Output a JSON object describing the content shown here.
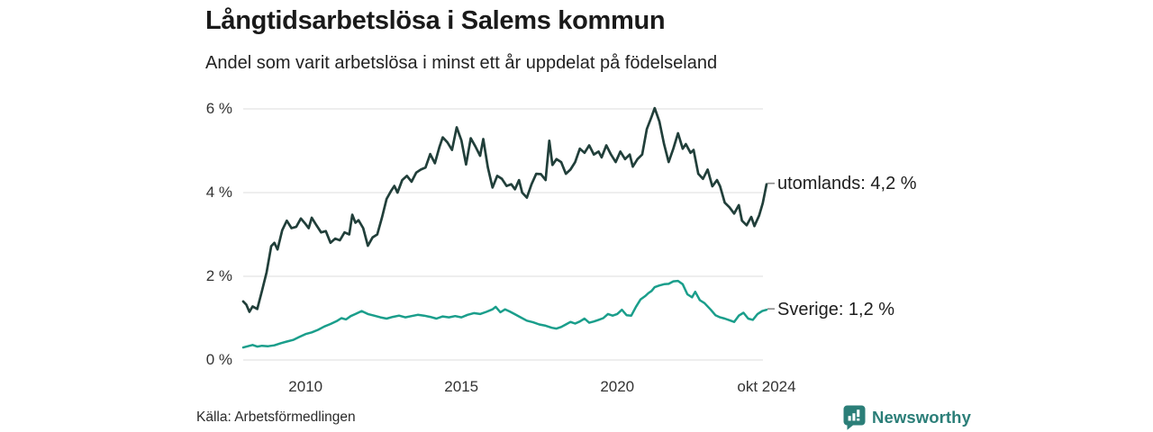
{
  "header": {
    "title": "Långtidsarbetslösa i Salems kommun",
    "subtitle": "Andel som varit arbetslösa i minst ett år uppdelat på födelseland"
  },
  "chart_data": {
    "type": "line",
    "title": "Långtidsarbetslösa i Salems kommun",
    "subtitle": "Andel som varit arbetslösa i minst ett år uppdelat på födelseland",
    "unit": "%",
    "grid": true,
    "x_axis": {
      "range": [
        2008.0,
        2024.79
      ],
      "ticks": [
        {
          "label": "2010",
          "x": 2010
        },
        {
          "label": "2015",
          "x": 2015
        },
        {
          "label": "2020",
          "x": 2020
        },
        {
          "label": "okt 2024",
          "x": 2024.79
        }
      ]
    },
    "y_axis": {
      "range": [
        0,
        6
      ],
      "ticks": [
        {
          "label": "6 %",
          "value": 6
        },
        {
          "label": "4 %",
          "value": 4
        },
        {
          "label": "2 %",
          "value": 2
        },
        {
          "label": "0 %",
          "value": 0
        }
      ]
    },
    "series": [
      {
        "name": "utomlands",
        "label": "utomlands: 4,2 %",
        "end_value": 4.2,
        "color": "#213f3a",
        "stroke_width": 2.7,
        "points": [
          [
            2008.0,
            1.4
          ],
          [
            2008.1,
            1.32
          ],
          [
            2008.2,
            1.15
          ],
          [
            2008.3,
            1.28
          ],
          [
            2008.45,
            1.22
          ],
          [
            2008.6,
            1.65
          ],
          [
            2008.75,
            2.1
          ],
          [
            2008.9,
            2.72
          ],
          [
            2009.0,
            2.8
          ],
          [
            2009.1,
            2.64
          ],
          [
            2009.25,
            3.1
          ],
          [
            2009.4,
            3.33
          ],
          [
            2009.55,
            3.15
          ],
          [
            2009.7,
            3.18
          ],
          [
            2009.85,
            3.38
          ],
          [
            2010.0,
            3.25
          ],
          [
            2010.1,
            3.15
          ],
          [
            2010.2,
            3.4
          ],
          [
            2010.35,
            3.22
          ],
          [
            2010.5,
            3.05
          ],
          [
            2010.65,
            3.08
          ],
          [
            2010.8,
            2.8
          ],
          [
            2010.95,
            2.9
          ],
          [
            2011.1,
            2.86
          ],
          [
            2011.25,
            3.05
          ],
          [
            2011.4,
            3.0
          ],
          [
            2011.5,
            3.47
          ],
          [
            2011.6,
            3.28
          ],
          [
            2011.7,
            3.34
          ],
          [
            2011.85,
            3.15
          ],
          [
            2012.0,
            2.73
          ],
          [
            2012.15,
            2.93
          ],
          [
            2012.3,
            3.0
          ],
          [
            2012.45,
            3.4
          ],
          [
            2012.6,
            3.85
          ],
          [
            2012.75,
            4.05
          ],
          [
            2012.85,
            4.16
          ],
          [
            2012.95,
            4.0
          ],
          [
            2013.1,
            4.3
          ],
          [
            2013.25,
            4.4
          ],
          [
            2013.4,
            4.26
          ],
          [
            2013.55,
            4.48
          ],
          [
            2013.7,
            4.55
          ],
          [
            2013.85,
            4.6
          ],
          [
            2014.0,
            4.92
          ],
          [
            2014.15,
            4.7
          ],
          [
            2014.3,
            5.1
          ],
          [
            2014.4,
            5.32
          ],
          [
            2014.55,
            5.2
          ],
          [
            2014.7,
            5.02
          ],
          [
            2014.85,
            5.56
          ],
          [
            2015.0,
            5.25
          ],
          [
            2015.15,
            4.67
          ],
          [
            2015.3,
            5.3
          ],
          [
            2015.45,
            5.1
          ],
          [
            2015.6,
            4.88
          ],
          [
            2015.7,
            5.28
          ],
          [
            2015.85,
            4.6
          ],
          [
            2016.0,
            4.12
          ],
          [
            2016.15,
            4.4
          ],
          [
            2016.3,
            4.33
          ],
          [
            2016.45,
            4.16
          ],
          [
            2016.6,
            4.2
          ],
          [
            2016.72,
            4.08
          ],
          [
            2016.85,
            4.3
          ],
          [
            2016.95,
            4.0
          ],
          [
            2017.1,
            3.88
          ],
          [
            2017.25,
            4.2
          ],
          [
            2017.4,
            4.45
          ],
          [
            2017.55,
            4.44
          ],
          [
            2017.7,
            4.3
          ],
          [
            2017.82,
            5.24
          ],
          [
            2017.92,
            4.66
          ],
          [
            2018.05,
            4.8
          ],
          [
            2018.2,
            4.73
          ],
          [
            2018.35,
            4.45
          ],
          [
            2018.5,
            4.55
          ],
          [
            2018.65,
            4.73
          ],
          [
            2018.8,
            5.05
          ],
          [
            2018.95,
            4.95
          ],
          [
            2019.1,
            5.13
          ],
          [
            2019.25,
            4.91
          ],
          [
            2019.4,
            4.98
          ],
          [
            2019.5,
            4.84
          ],
          [
            2019.65,
            5.13
          ],
          [
            2019.8,
            4.91
          ],
          [
            2019.95,
            4.73
          ],
          [
            2020.1,
            4.98
          ],
          [
            2020.25,
            4.8
          ],
          [
            2020.4,
            4.91
          ],
          [
            2020.5,
            4.62
          ],
          [
            2020.65,
            4.8
          ],
          [
            2020.8,
            4.91
          ],
          [
            2020.95,
            5.52
          ],
          [
            2021.1,
            5.81
          ],
          [
            2021.2,
            6.02
          ],
          [
            2021.35,
            5.7
          ],
          [
            2021.5,
            5.16
          ],
          [
            2021.65,
            4.73
          ],
          [
            2021.8,
            5.05
          ],
          [
            2021.95,
            5.42
          ],
          [
            2022.1,
            5.05
          ],
          [
            2022.2,
            5.16
          ],
          [
            2022.35,
            4.95
          ],
          [
            2022.45,
            5.02
          ],
          [
            2022.6,
            4.45
          ],
          [
            2022.75,
            4.33
          ],
          [
            2022.9,
            4.55
          ],
          [
            2023.05,
            4.15
          ],
          [
            2023.2,
            4.3
          ],
          [
            2023.3,
            4.15
          ],
          [
            2023.45,
            3.76
          ],
          [
            2023.6,
            3.65
          ],
          [
            2023.75,
            3.5
          ],
          [
            2023.9,
            3.7
          ],
          [
            2024.0,
            3.33
          ],
          [
            2024.15,
            3.22
          ],
          [
            2024.3,
            3.42
          ],
          [
            2024.4,
            3.2
          ],
          [
            2024.55,
            3.45
          ],
          [
            2024.67,
            3.75
          ],
          [
            2024.79,
            4.2
          ]
        ]
      },
      {
        "name": "Sverige",
        "label": "Sverige: 1,2 %",
        "end_value": 1.2,
        "color": "#1a9e8b",
        "stroke_width": 2.5,
        "points": [
          [
            2008.0,
            0.3
          ],
          [
            2008.15,
            0.33
          ],
          [
            2008.3,
            0.36
          ],
          [
            2008.45,
            0.32
          ],
          [
            2008.6,
            0.34
          ],
          [
            2008.8,
            0.33
          ],
          [
            2009.0,
            0.35
          ],
          [
            2009.2,
            0.4
          ],
          [
            2009.4,
            0.44
          ],
          [
            2009.6,
            0.48
          ],
          [
            2009.8,
            0.55
          ],
          [
            2010.0,
            0.62
          ],
          [
            2010.2,
            0.66
          ],
          [
            2010.4,
            0.72
          ],
          [
            2010.6,
            0.8
          ],
          [
            2010.8,
            0.86
          ],
          [
            2011.0,
            0.93
          ],
          [
            2011.15,
            1.0
          ],
          [
            2011.3,
            0.97
          ],
          [
            2011.45,
            1.05
          ],
          [
            2011.6,
            1.1
          ],
          [
            2011.8,
            1.17
          ],
          [
            2012.0,
            1.1
          ],
          [
            2012.2,
            1.06
          ],
          [
            2012.4,
            1.02
          ],
          [
            2012.6,
            0.99
          ],
          [
            2012.8,
            1.03
          ],
          [
            2013.0,
            1.06
          ],
          [
            2013.2,
            1.02
          ],
          [
            2013.4,
            1.05
          ],
          [
            2013.6,
            1.08
          ],
          [
            2013.8,
            1.06
          ],
          [
            2014.0,
            1.03
          ],
          [
            2014.2,
            0.99
          ],
          [
            2014.4,
            1.04
          ],
          [
            2014.6,
            1.02
          ],
          [
            2014.8,
            1.05
          ],
          [
            2015.0,
            1.02
          ],
          [
            2015.2,
            1.08
          ],
          [
            2015.4,
            1.12
          ],
          [
            2015.6,
            1.1
          ],
          [
            2015.8,
            1.15
          ],
          [
            2016.0,
            1.21
          ],
          [
            2016.1,
            1.27
          ],
          [
            2016.25,
            1.14
          ],
          [
            2016.4,
            1.21
          ],
          [
            2016.55,
            1.16
          ],
          [
            2016.7,
            1.1
          ],
          [
            2016.9,
            1.02
          ],
          [
            2017.1,
            0.94
          ],
          [
            2017.3,
            0.9
          ],
          [
            2017.5,
            0.85
          ],
          [
            2017.7,
            0.82
          ],
          [
            2017.9,
            0.77
          ],
          [
            2018.05,
            0.75
          ],
          [
            2018.2,
            0.79
          ],
          [
            2018.35,
            0.85
          ],
          [
            2018.5,
            0.91
          ],
          [
            2018.65,
            0.87
          ],
          [
            2018.8,
            0.92
          ],
          [
            2018.95,
            0.99
          ],
          [
            2019.1,
            0.89
          ],
          [
            2019.25,
            0.92
          ],
          [
            2019.4,
            0.96
          ],
          [
            2019.55,
            1.0
          ],
          [
            2019.7,
            1.1
          ],
          [
            2019.85,
            1.06
          ],
          [
            2020.0,
            1.1
          ],
          [
            2020.15,
            1.2
          ],
          [
            2020.3,
            1.07
          ],
          [
            2020.45,
            1.06
          ],
          [
            2020.6,
            1.27
          ],
          [
            2020.75,
            1.45
          ],
          [
            2020.9,
            1.53
          ],
          [
            2021.0,
            1.6
          ],
          [
            2021.1,
            1.65
          ],
          [
            2021.2,
            1.74
          ],
          [
            2021.35,
            1.78
          ],
          [
            2021.5,
            1.81
          ],
          [
            2021.65,
            1.82
          ],
          [
            2021.8,
            1.88
          ],
          [
            2021.95,
            1.89
          ],
          [
            2022.1,
            1.81
          ],
          [
            2022.25,
            1.57
          ],
          [
            2022.4,
            1.5
          ],
          [
            2022.5,
            1.63
          ],
          [
            2022.65,
            1.43
          ],
          [
            2022.8,
            1.36
          ],
          [
            2023.0,
            1.2
          ],
          [
            2023.15,
            1.07
          ],
          [
            2023.3,
            1.02
          ],
          [
            2023.45,
            0.99
          ],
          [
            2023.6,
            0.95
          ],
          [
            2023.75,
            0.91
          ],
          [
            2023.9,
            1.06
          ],
          [
            2024.05,
            1.13
          ],
          [
            2024.2,
            0.99
          ],
          [
            2024.35,
            0.96
          ],
          [
            2024.5,
            1.1
          ],
          [
            2024.65,
            1.17
          ],
          [
            2024.79,
            1.2
          ]
        ]
      }
    ],
    "legend_position": "right-of-line-ends",
    "colors": {
      "grid": "#dcdcdc",
      "tick_text": "#333333",
      "label_tick": "#8a8a8a"
    }
  },
  "footer": {
    "source": "Källa: Arbetsförmedlingen",
    "brand": "Newsworthy",
    "brand_color": "#2b7e78"
  }
}
